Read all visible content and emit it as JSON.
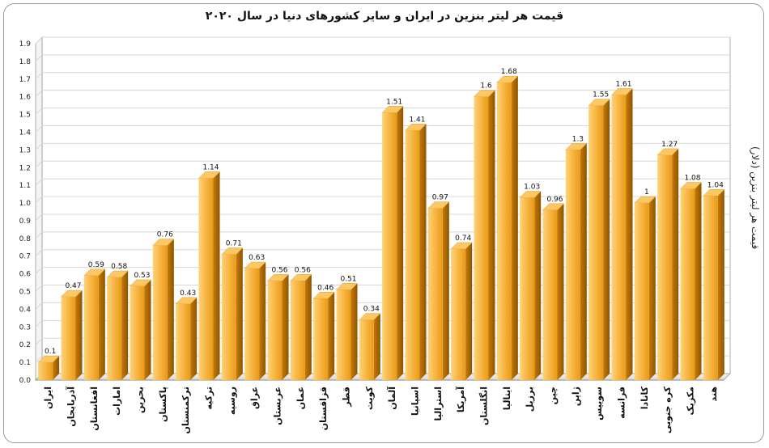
{
  "chart_data": {
    "type": "bar",
    "title": "قیمت هر لیتر بنزین در ایران و سایر کشورهای دنیا در سال ۲۰۲۰",
    "ylabel": "قیمت هر لیتر بنزین (دلار)",
    "xlabel": "",
    "ylim": [
      0,
      1.9
    ],
    "yticks": [
      "0.0",
      "0.1",
      "0.2",
      "0.3",
      "0.4",
      "0.5",
      "0.6",
      "0.7",
      "0.8",
      "0.9",
      "1.0",
      "1.1",
      "1.2",
      "1.3",
      "1.4",
      "1.5",
      "1.6",
      "1.7",
      "1.8",
      "1.9"
    ],
    "grid": true,
    "categories": [
      "ایران",
      "آذربایجان",
      "افغانستان",
      "امارات",
      "بحرین",
      "پاکستان",
      "ترکمنستان",
      "ترکیه",
      "روسیه",
      "عراق",
      "عربستان",
      "عمان",
      "قزاقستان",
      "قطر",
      "کویت",
      "آلمان",
      "اسپانیا",
      "استرالیا",
      "آمریکا",
      "انگلستان",
      "ایتالیا",
      "برزیل",
      "چین",
      "ژاپن",
      "سوییس",
      "فرانسه",
      "کانادا",
      "کره جنوبی",
      "مکزیک",
      "هند"
    ],
    "values": [
      0.1,
      0.47,
      0.59,
      0.58,
      0.53,
      0.76,
      0.43,
      1.14,
      0.71,
      0.63,
      0.56,
      0.56,
      0.46,
      0.51,
      0.34,
      1.51,
      1.41,
      0.97,
      0.74,
      1.6,
      1.68,
      1.03,
      0.96,
      1.3,
      1.55,
      1.61,
      1,
      1.27,
      1.08,
      1.04
    ],
    "value_labels": [
      "0.1",
      "0.47",
      "0.59",
      "0.58",
      "0.53",
      "0.76",
      "0.43",
      "1.14",
      "0.71",
      "0.63",
      "0.56",
      "0.56",
      "0.46",
      "0.51",
      "0.34",
      "1.51",
      "1.41",
      "0.97",
      "0.74",
      "1.6",
      "1.68",
      "1.03",
      "0.96",
      "1.3",
      "1.55",
      "1.61",
      "1",
      "1.27",
      "1.08",
      "1.04"
    ],
    "colors": {
      "bar_front": "#f7b13a",
      "bar_side": "#b36a00",
      "bar_top": "#fcc866",
      "grid": "#d8d8d8"
    }
  }
}
